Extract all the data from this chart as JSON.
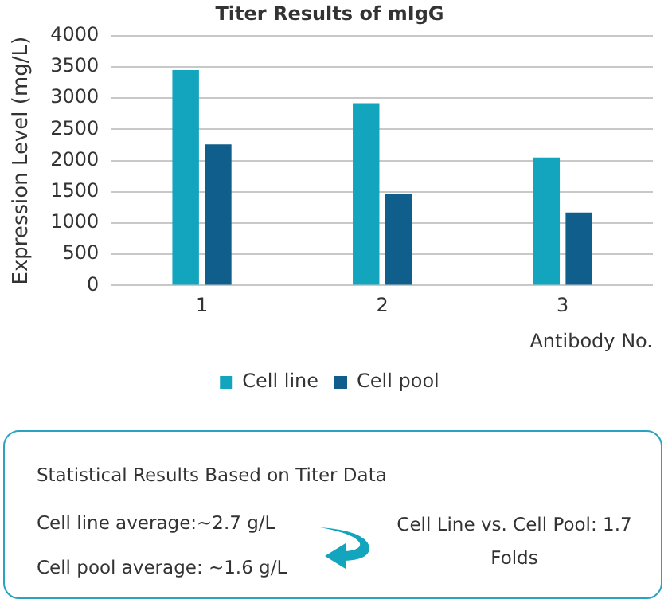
{
  "chart_data": {
    "type": "bar",
    "title": "Titer Results of mIgG",
    "xlabel": "Antibody No.",
    "ylabel": "Expression Level (mg/L)",
    "categories": [
      "1",
      "2",
      "3"
    ],
    "series": [
      {
        "name": "Cell line",
        "color": "#12a5bd",
        "values": [
          3450,
          2920,
          2050
        ]
      },
      {
        "name": "Cell pool",
        "color": "#0f5e8c",
        "values": [
          2260,
          1470,
          1170
        ]
      }
    ],
    "ylim": [
      0,
      4000
    ],
    "yticks": [
      0,
      500,
      1000,
      1500,
      2000,
      2500,
      3000,
      3500,
      4000
    ],
    "grid": "y",
    "legend": "bottom",
    "annotations": [
      "Statistical Results Based on Titer Data",
      "Cell line average:~2.7 g/L",
      "Cell pool average: ~1.6 g/L",
      "Cell Line vs. Cell Pool: 1.7 Folds"
    ]
  }
}
